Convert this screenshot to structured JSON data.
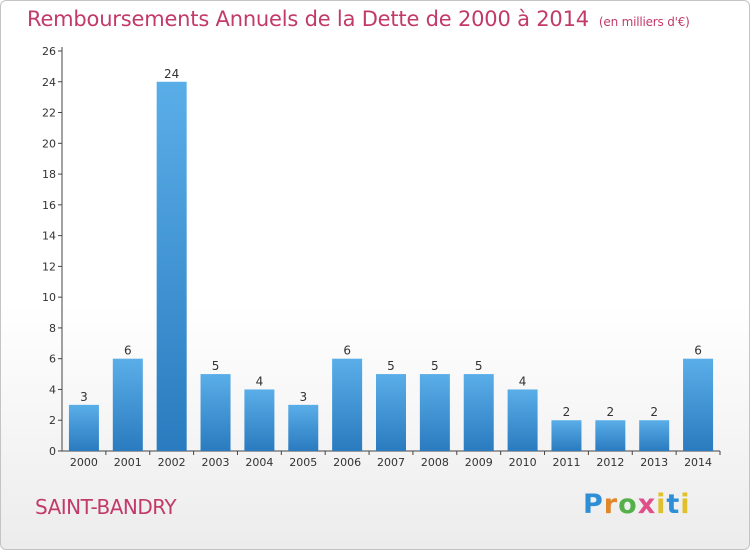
{
  "title": "Remboursements Annuels de la Dette de 2000 à 2014",
  "unit": "(en milliers d'€)",
  "commune": "SAINT-BANDRY",
  "logo": {
    "p": "P",
    "r": "r",
    "o": "o",
    "x": "x",
    "i": "i",
    "t": "t",
    "i2": "i"
  },
  "colors": {
    "bar_top": "#5aaee8",
    "bar_bottom": "#2a7bbf",
    "title": "#c23a6a"
  },
  "chart_data": {
    "type": "bar",
    "categories": [
      "2000",
      "2001",
      "2002",
      "2003",
      "2004",
      "2005",
      "2006",
      "2007",
      "2008",
      "2009",
      "2010",
      "2011",
      "2012",
      "2013",
      "2014"
    ],
    "values": [
      3,
      6,
      24,
      5,
      4,
      3,
      6,
      5,
      5,
      5,
      4,
      2,
      2,
      2,
      6
    ],
    "data_labels": [
      "3",
      "6",
      "24",
      "5",
      "4",
      "3",
      "6",
      "5",
      "5",
      "5",
      "4",
      "2",
      "2",
      "2",
      "6"
    ],
    "title": "Remboursements Annuels de la Dette de 2000 à 2014",
    "xlabel": "",
    "ylabel": "",
    "ylim": [
      0,
      26
    ],
    "yticks": [
      0,
      2,
      4,
      6,
      8,
      10,
      12,
      14,
      16,
      18,
      20,
      22,
      24,
      26
    ],
    "grid": false,
    "legend": "none"
  }
}
